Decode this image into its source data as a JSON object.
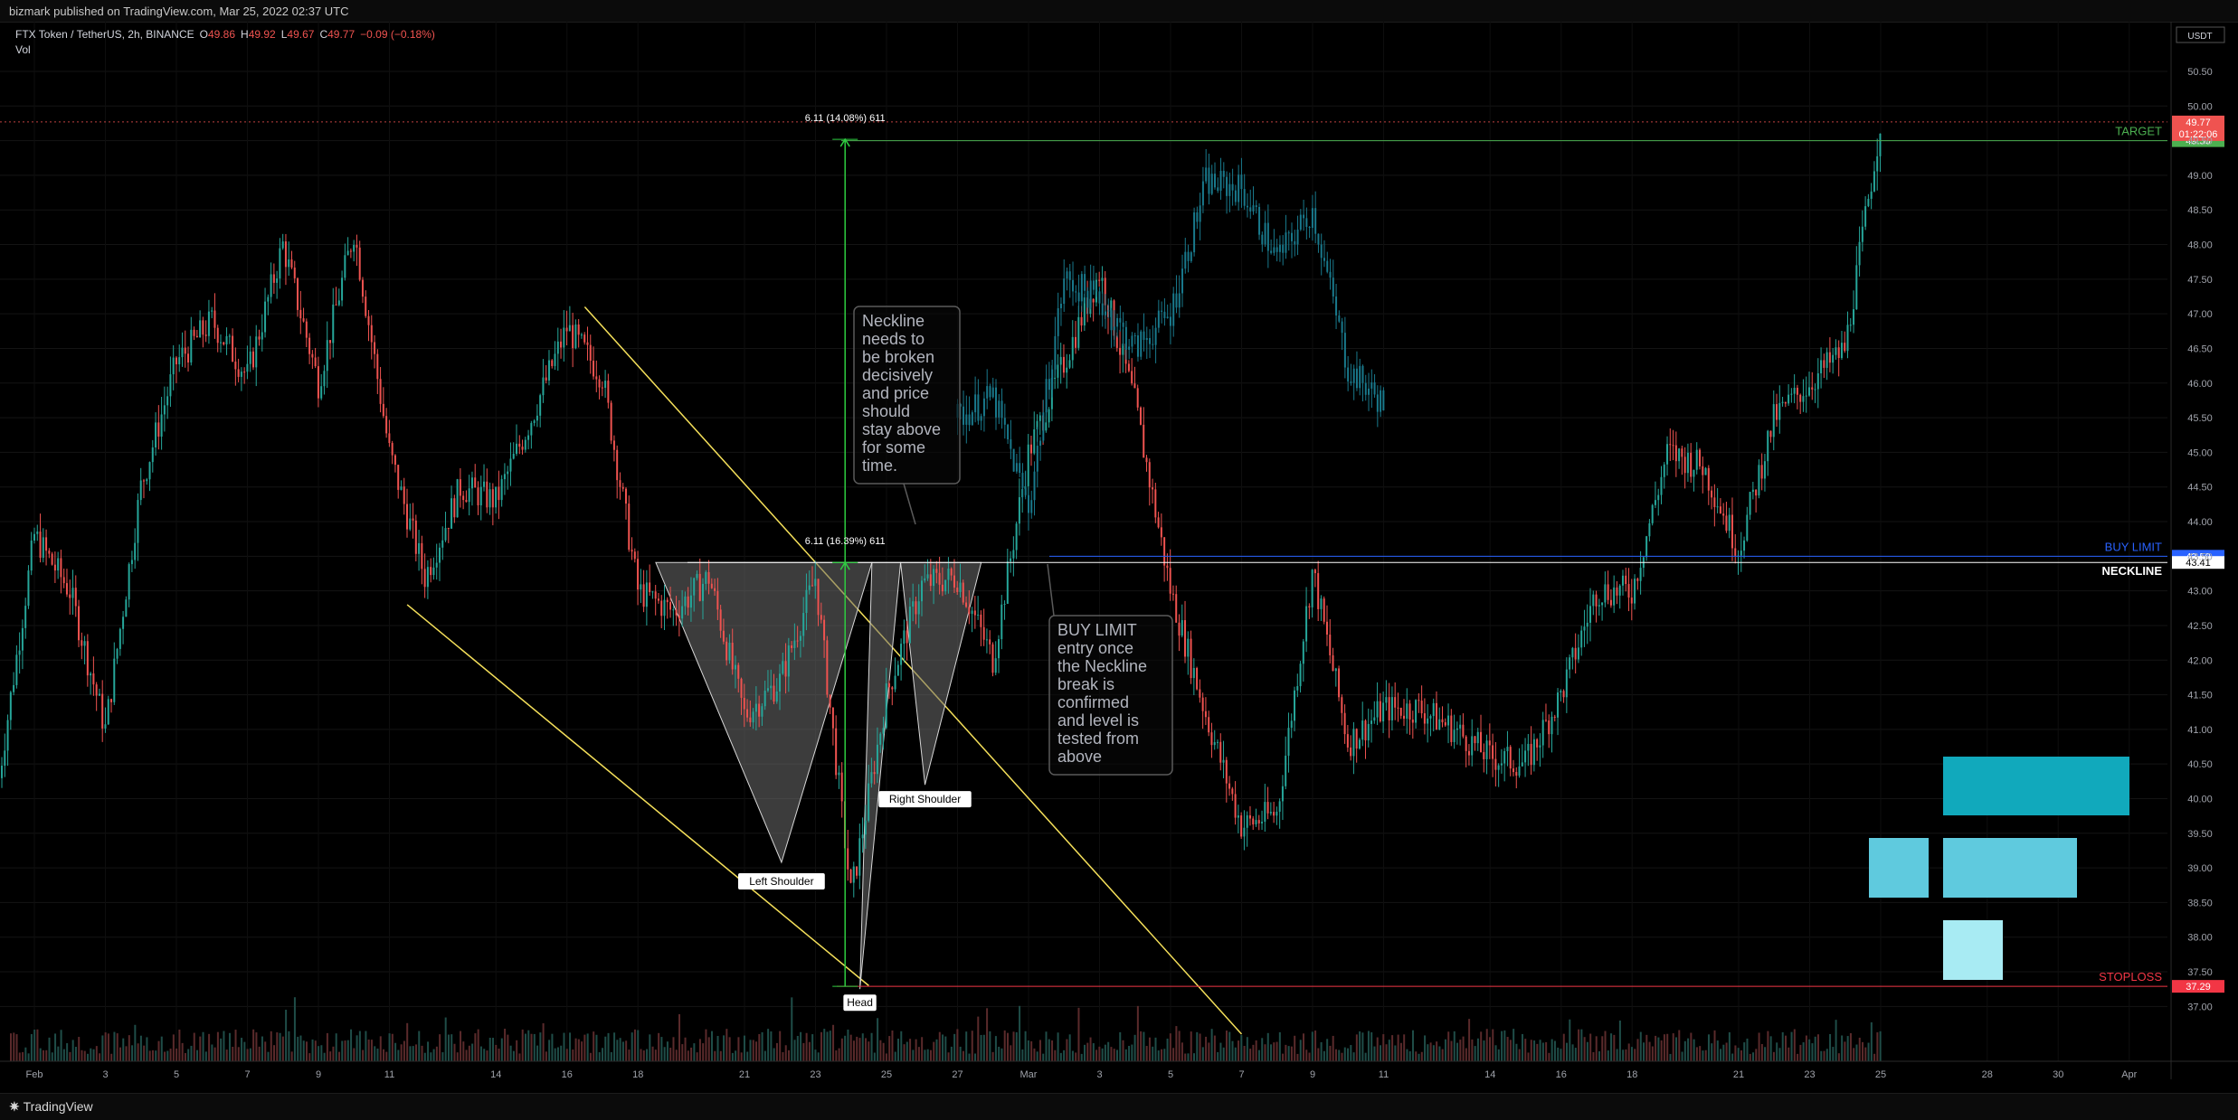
{
  "header": {
    "published": "bizmark published on TradingView.com, Mar 25, 2022 02:37 UTC"
  },
  "legend": {
    "symbol": "FTX Token / TetherUS, 2h, BINANCE",
    "o_label": "O",
    "o": "49.86",
    "h_label": "H",
    "h": "49.92",
    "l_label": "L",
    "l": "49.67",
    "c_label": "C",
    "c": "49.77",
    "change": "−0.09 (−0.18%)",
    "vol": "Vol"
  },
  "footer": {
    "brand": "TradingView"
  },
  "colors": {
    "up": "#26a69a",
    "down": "#ef5350",
    "highlight_candles": "#19798c",
    "target": "#4caf50",
    "buy_limit": "#2962ff",
    "neckline": "#ffffff",
    "stoploss": "#f23645",
    "channel": "#f5e05a",
    "pattern_fill": "#6d6d6d"
  },
  "chart_data": {
    "type": "candlestick",
    "currency": "USDT",
    "y_axis_ticks": [
      "50.50",
      "50.00",
      "49.50",
      "49.00",
      "48.50",
      "48.00",
      "47.50",
      "47.00",
      "46.50",
      "46.00",
      "45.50",
      "45.00",
      "44.50",
      "44.00",
      "43.50",
      "43.00",
      "42.50",
      "42.00",
      "41.50",
      "41.00",
      "40.50",
      "40.00",
      "39.50",
      "39.00",
      "38.50",
      "38.00",
      "37.50",
      "37.00"
    ],
    "ylim": [
      36.6,
      50.8
    ],
    "x_axis_ticks": [
      "Feb",
      "3",
      "5",
      "7",
      "9",
      "11",
      "14",
      "16",
      "18",
      "21",
      "23",
      "25",
      "27",
      "Mar",
      "3",
      "5",
      "7",
      "9",
      "11",
      "14",
      "16",
      "18",
      "21",
      "23",
      "25",
      "28",
      "30",
      "Apr"
    ],
    "x_dates": [
      "2022-02-01",
      "2022-02-03",
      "2022-02-05",
      "2022-02-07",
      "2022-02-09",
      "2022-02-11",
      "2022-02-14",
      "2022-02-16",
      "2022-02-18",
      "2022-02-21",
      "2022-02-23",
      "2022-02-25",
      "2022-02-27",
      "2022-03-01",
      "2022-03-03",
      "2022-03-05",
      "2022-03-07",
      "2022-03-09",
      "2022-03-11",
      "2022-03-14",
      "2022-03-16",
      "2022-03-18",
      "2022-03-21",
      "2022-03-23",
      "2022-03-25",
      "2022-03-28",
      "2022-03-30",
      "2022-04-01"
    ],
    "price_path": [
      [
        "2022-01-31",
        40.3
      ],
      [
        "2022-02-01",
        43.8
      ],
      [
        "2022-02-02",
        43.0
      ],
      [
        "2022-02-03",
        41.0
      ],
      [
        "2022-02-04",
        44.5
      ],
      [
        "2022-02-05",
        46.3
      ],
      [
        "2022-02-06",
        46.9
      ],
      [
        "2022-02-07",
        46.1
      ],
      [
        "2022-02-08",
        48.0
      ],
      [
        "2022-02-09",
        46.0
      ],
      [
        "2022-02-10",
        48.2
      ],
      [
        "2022-02-11",
        45.0
      ],
      [
        "2022-02-12",
        43.2
      ],
      [
        "2022-02-13",
        44.5
      ],
      [
        "2022-02-14",
        44.3
      ],
      [
        "2022-02-15",
        45.5
      ],
      [
        "2022-02-16",
        46.8
      ],
      [
        "2022-02-17",
        46.1
      ],
      [
        "2022-02-18",
        43.0
      ],
      [
        "2022-02-19",
        42.7
      ],
      [
        "2022-02-20",
        43.2
      ],
      [
        "2022-02-21",
        41.2
      ],
      [
        "2022-02-22",
        41.7
      ],
      [
        "2022-02-23",
        43.2
      ],
      [
        "2022-02-24",
        38.6
      ],
      [
        "2022-02-25",
        41.5
      ],
      [
        "2022-02-26",
        43.1
      ],
      [
        "2022-02-27",
        43.2
      ],
      [
        "2022-02-28",
        42.0
      ],
      [
        "2022-03-01",
        45.0
      ],
      [
        "2022-03-02",
        46.3
      ],
      [
        "2022-03-03",
        47.6
      ],
      [
        "2022-03-04",
        45.7
      ],
      [
        "2022-03-05",
        43.0
      ],
      [
        "2022-03-06",
        41.2
      ],
      [
        "2022-03-07",
        39.6
      ],
      [
        "2022-03-08",
        39.8
      ],
      [
        "2022-03-09",
        43.3
      ],
      [
        "2022-03-10",
        40.8
      ],
      [
        "2022-03-11",
        41.3
      ],
      [
        "2022-03-12",
        41.3
      ],
      [
        "2022-03-13",
        41.0
      ],
      [
        "2022-03-14",
        40.6
      ],
      [
        "2022-03-15",
        40.5
      ],
      [
        "2022-03-16",
        41.5
      ],
      [
        "2022-03-17",
        43.0
      ],
      [
        "2022-03-18",
        43.0
      ],
      [
        "2022-03-19",
        45.0
      ],
      [
        "2022-03-20",
        44.8
      ],
      [
        "2022-03-21",
        43.6
      ],
      [
        "2022-03-22",
        45.5
      ],
      [
        "2022-03-23",
        46.0
      ],
      [
        "2022-03-24",
        46.5
      ],
      [
        "2022-03-25",
        49.8
      ]
    ],
    "highlight_path": [
      [
        "2022-02-27",
        45.5
      ],
      [
        "2022-02-28",
        45.8
      ],
      [
        "2022-03-01",
        44.2
      ],
      [
        "2022-03-02",
        47.5
      ],
      [
        "2022-03-03",
        47.2
      ],
      [
        "2022-03-04",
        46.5
      ],
      [
        "2022-03-05",
        47.0
      ],
      [
        "2022-03-06",
        48.9
      ],
      [
        "2022-03-07",
        48.8
      ],
      [
        "2022-03-08",
        47.8
      ],
      [
        "2022-03-09",
        48.5
      ],
      [
        "2022-03-10",
        46.2
      ],
      [
        "2022-03-11",
        45.7
      ]
    ],
    "current_price": 49.77,
    "timer": "01:22:06",
    "levels": [
      {
        "name": "target",
        "label": "TARGET",
        "price": 49.5,
        "axis_label": "49.50",
        "color": "#4caf50"
      },
      {
        "name": "buy-limit",
        "label": "BUY LIMIT",
        "price": 43.5,
        "axis_label": "43.50",
        "color": "#2962ff"
      },
      {
        "name": "neckline",
        "label": "NECKLINE",
        "price": 43.41,
        "axis_label": "43.41",
        "color": "#ffffff"
      },
      {
        "name": "stoploss",
        "label": "STOPLOSS",
        "price": 37.29,
        "axis_label": "37.29",
        "color": "#f23645"
      }
    ],
    "measures": [
      {
        "label": "6.11 (14.08%) 611",
        "from": 43.41,
        "to": 49.52,
        "date": "2022-02-23T20:00"
      },
      {
        "label": "6.11 (16.39%) 611",
        "from": 37.29,
        "to": 43.41,
        "date": "2022-02-23T20:00"
      }
    ],
    "pattern": {
      "neckline_start": [
        "2022-02-18T12:00",
        43.41
      ],
      "neckline_end": [
        "2022-02-27T16:00",
        43.41
      ],
      "left_shoulder": [
        "2022-02-22T01:00",
        39.08
      ],
      "head": [
        "2022-02-24T06:00",
        37.25
      ],
      "right_shoulder": [
        "2022-02-26T02:00",
        40.2
      ],
      "labels": {
        "left_shoulder": "Left Shoulder",
        "head": "Head",
        "right_shoulder": "Right Shoulder"
      }
    },
    "channel": {
      "upper": [
        [
          "2022-02-16T12:00",
          47.1
        ],
        [
          "2022-03-07T00:00",
          36.6
        ]
      ],
      "lower": [
        [
          "2022-02-11T12:00",
          42.8
        ],
        [
          "2022-02-24T12:00",
          37.3
        ]
      ]
    },
    "notes": [
      {
        "name": "neckline-note",
        "lines": [
          "Neckline",
          "needs to",
          "be broken",
          "decisively",
          "and price",
          "should",
          "stay above",
          "for some",
          "time."
        ]
      },
      {
        "name": "buy-limit-note",
        "lines": [
          "BUY LIMIT",
          "entry once",
          "the Neckline",
          "break is",
          "confirmed",
          "and level is",
          "tested from",
          "above"
        ]
      }
    ]
  }
}
